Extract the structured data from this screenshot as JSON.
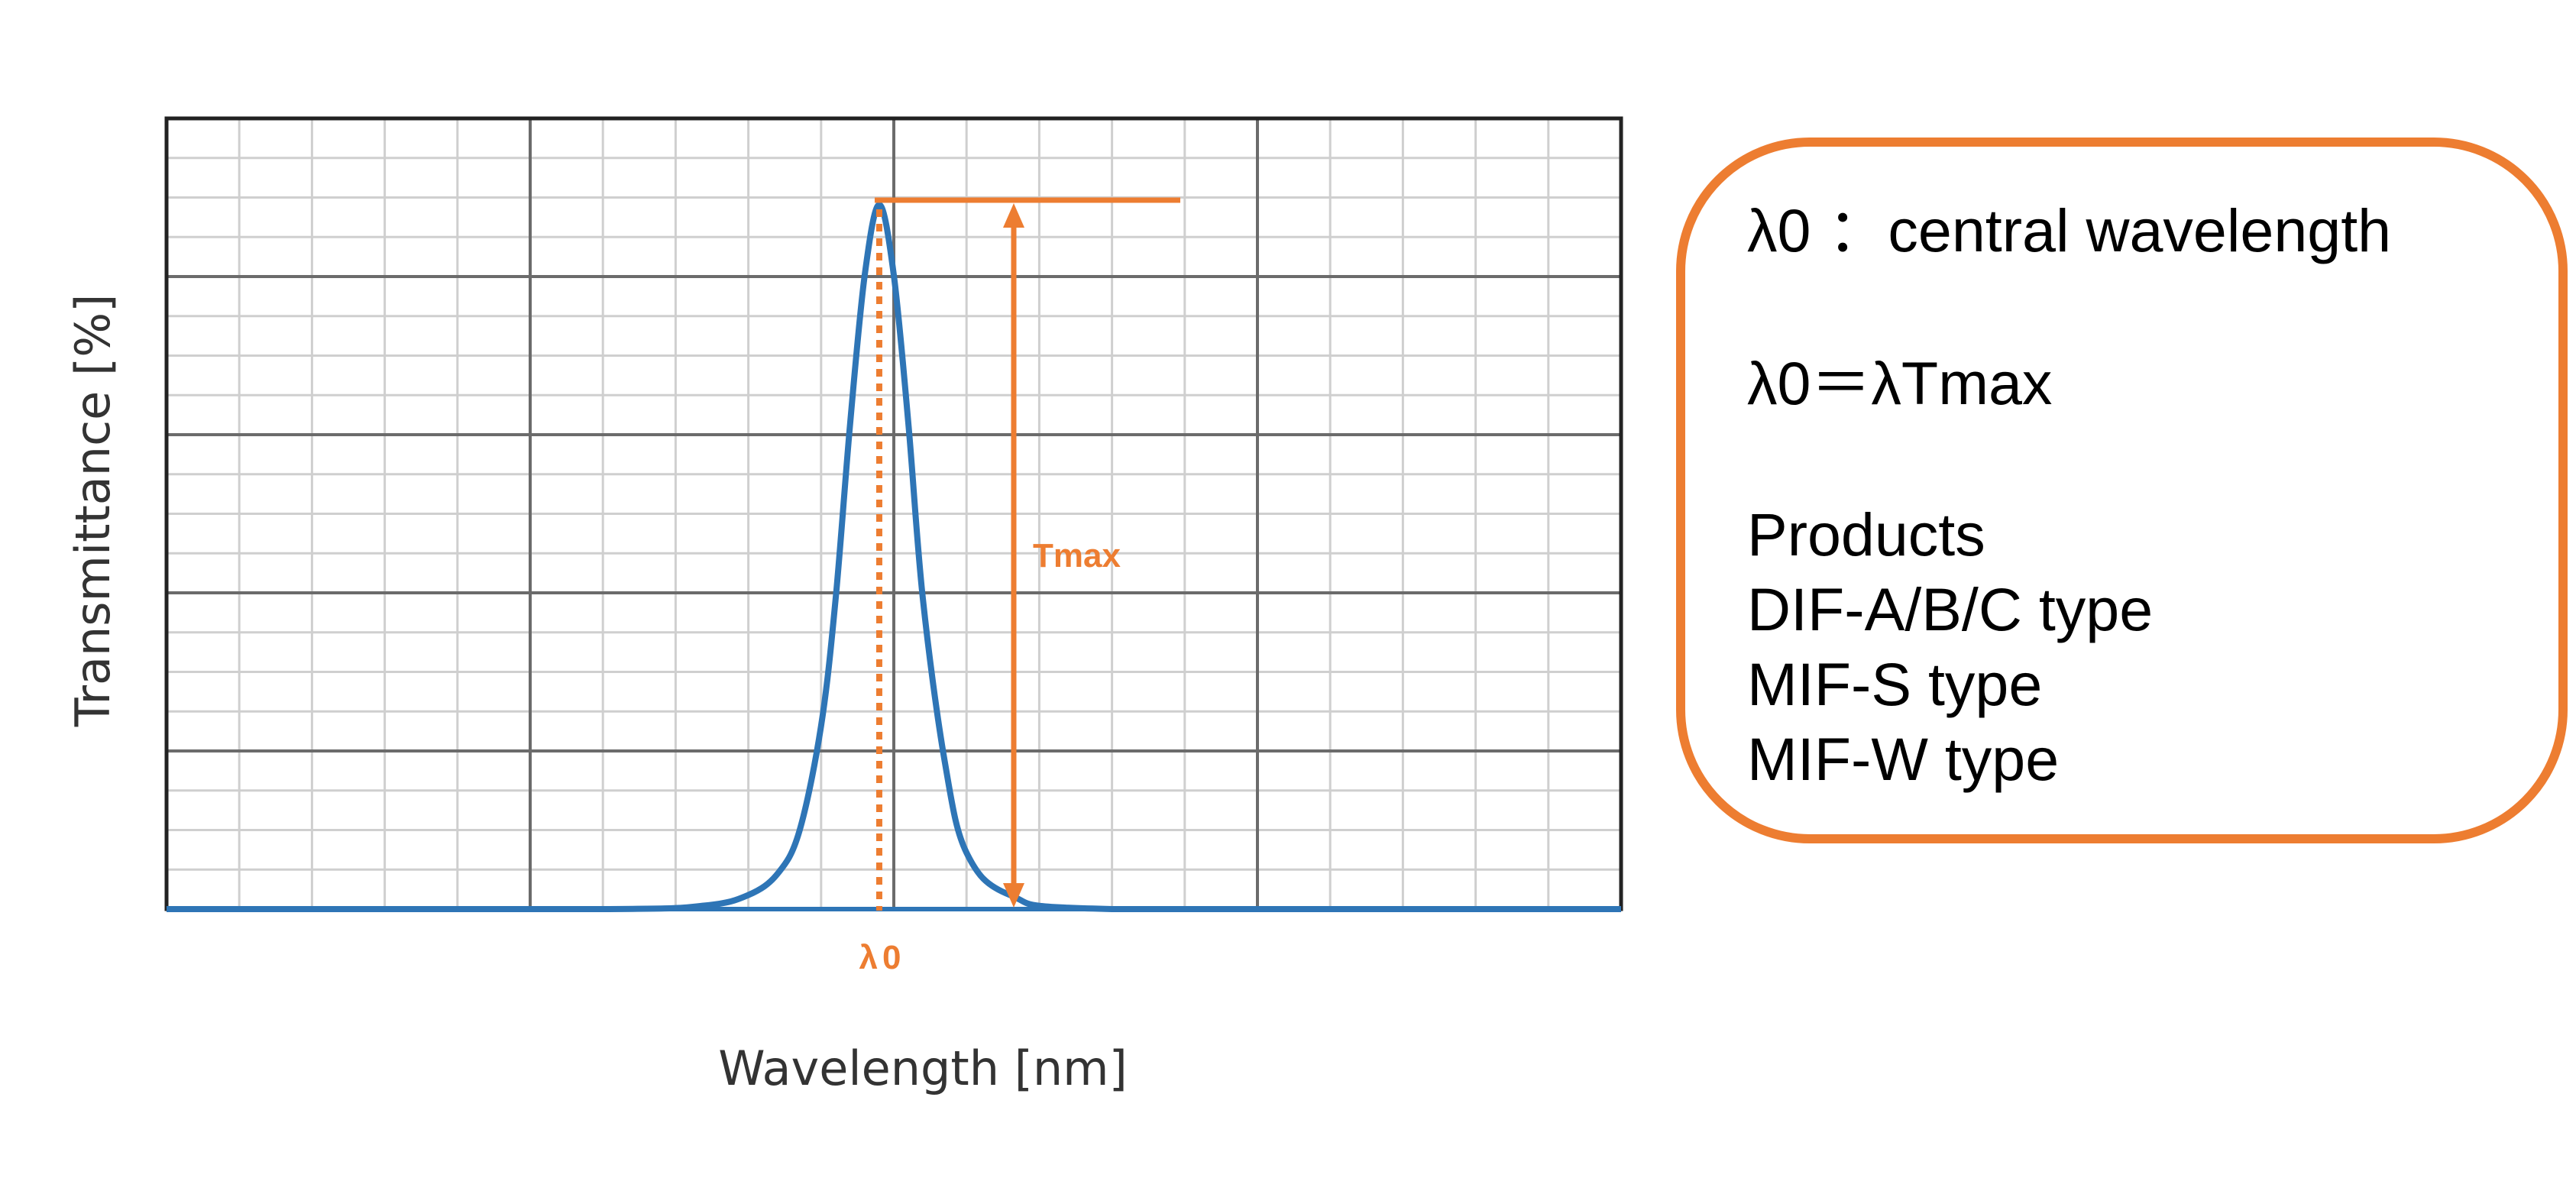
{
  "colors": {
    "curve": "#2E75B6",
    "accent": "#ED7D31",
    "grid_major": "#6b6b6b",
    "grid_minor": "#cfcfcf",
    "frame": "#222222",
    "axis_label": "#333333"
  },
  "chart_data": {
    "type": "line",
    "title": "",
    "xlabel": "Wavelength [nm]",
    "ylabel": "Transmittance [%]",
    "x_tick_labels": [],
    "y_tick_labels": [],
    "xlim": [
      0,
      100
    ],
    "ylim": [
      0,
      100
    ],
    "grid": true,
    "legend": "none",
    "x": [
      0,
      30,
      37,
      40,
      42,
      43.5,
      45,
      46,
      47,
      48,
      49,
      50,
      51,
      52,
      53.5,
      55,
      58,
      65,
      100
    ],
    "y": [
      0,
      0,
      0.5,
      2,
      5,
      11,
      26,
      44,
      69,
      90,
      100,
      90,
      69,
      44,
      21,
      8,
      2,
      0,
      0
    ],
    "annotations": {
      "peak_marker": "λ0",
      "height_marker": "Tmax"
    }
  },
  "legend_box": {
    "lines": [
      "λ0 ：central wavelength",
      "λ0＝λTmax",
      "Products",
      "DIF-A/B/C type",
      "MIF-S type",
      "MIF-W type"
    ]
  }
}
